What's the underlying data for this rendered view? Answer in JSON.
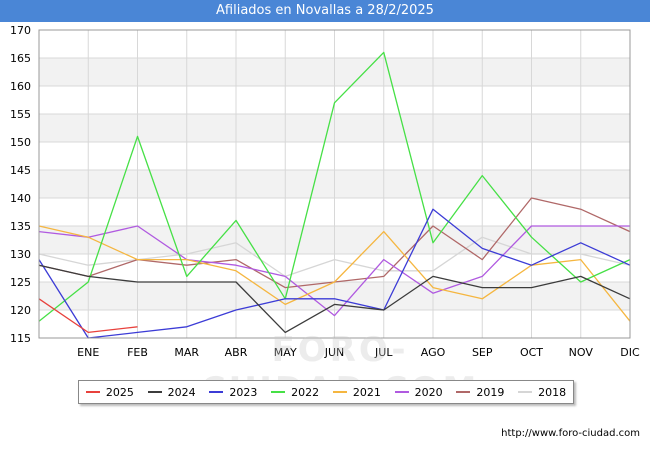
{
  "chart_data": {
    "type": "line",
    "title": "Afiliados en Novallas a 28/2/2025",
    "categories": [
      "DIC",
      "ENE",
      "FEB",
      "MAR",
      "ABR",
      "MAY",
      "JUN",
      "JUL",
      "AGO",
      "SEP",
      "OCT",
      "NOV",
      "DIC"
    ],
    "x_tick_labels": [
      "ENE",
      "FEB",
      "MAR",
      "ABR",
      "MAY",
      "JUN",
      "JUL",
      "AGO",
      "SEP",
      "OCT",
      "NOV",
      "DIC"
    ],
    "ylim": [
      115,
      170
    ],
    "yticks": [
      115,
      120,
      125,
      130,
      135,
      140,
      145,
      150,
      155,
      160,
      165,
      170
    ],
    "grid": true,
    "legend_position": "bottom",
    "series": [
      {
        "name": "2025",
        "color": "#e8413c",
        "values": [
          122,
          116,
          117,
          null,
          null,
          null,
          null,
          null,
          null,
          null,
          null,
          null,
          null
        ]
      },
      {
        "name": "2024",
        "color": "#3c3c3c",
        "values": [
          128,
          126,
          125,
          125,
          125,
          116,
          121,
          120,
          126,
          124,
          124,
          126,
          122
        ]
      },
      {
        "name": "2023",
        "color": "#3c3cd6",
        "values": [
          129,
          115,
          116,
          117,
          120,
          122,
          122,
          120,
          138,
          131,
          128,
          132,
          128
        ]
      },
      {
        "name": "2022",
        "color": "#46e046",
        "values": [
          118,
          125,
          151,
          126,
          136,
          122,
          157,
          166,
          132,
          144,
          133,
          125,
          129
        ]
      },
      {
        "name": "2021",
        "color": "#f5b640",
        "values": [
          135,
          133,
          129,
          129,
          127,
          121,
          125,
          134,
          124,
          122,
          128,
          129,
          118
        ]
      },
      {
        "name": "2020",
        "color": "#b05ae0",
        "values": [
          134,
          133,
          135,
          129,
          128,
          126,
          119,
          129,
          123,
          126,
          135,
          135,
          135
        ]
      },
      {
        "name": "2019",
        "color": "#b06868",
        "values": [
          128,
          126,
          129,
          128,
          129,
          124,
          125,
          126,
          135,
          129,
          140,
          138,
          134
        ]
      },
      {
        "name": "2018",
        "color": "#d6d6d6",
        "values": [
          130,
          128,
          129,
          130,
          132,
          126,
          129,
          127,
          127,
          133,
          130,
          130,
          128
        ]
      }
    ]
  },
  "footer": {
    "url": "http://www.foro-ciudad.com"
  },
  "watermark": {
    "text": "FORO-CIUDAD.COM"
  }
}
